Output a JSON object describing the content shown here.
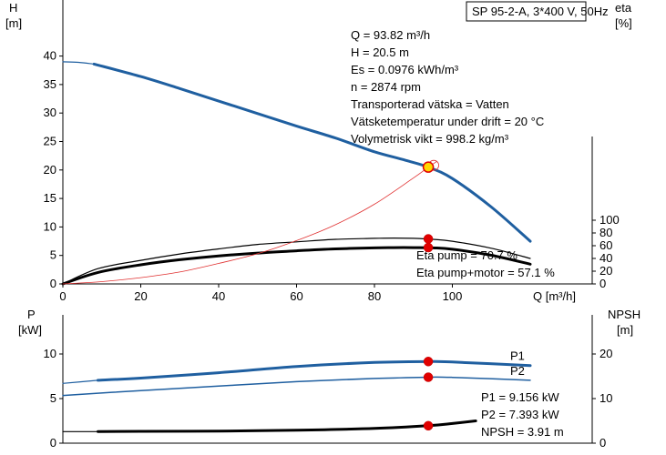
{
  "pump_title": "SP 95-2-A, 3*400 V, 50Hz",
  "operating_point_info": [
    "Q = 93.82 m³/h",
    "H = 20.5 m",
    "Es = 0.0976 kWh/m³",
    "n = 2874 rpm",
    "Transporterad vätska = Vatten",
    "Vätsketemperatur under drift = 20 °C",
    "Volymetrisk vikt = 998.2 kg/m³"
  ],
  "eta_info": [
    "Eta pump = 70.7 %",
    "Eta pump+motor = 57.1 %"
  ],
  "power_info": [
    "P1 = 9.156 kW",
    "P2 = 7.393 kW",
    "NPSH = 3.91 m"
  ],
  "colors": {
    "head": "#1f5fa0",
    "eta": "#000000",
    "system": "#e03030",
    "marker": "#e00000",
    "duty": "#ffd700"
  },
  "chart_data": [
    {
      "type": "line",
      "title": "",
      "xlabel": "Q [m³/h]",
      "ylabel": "H\n[m]",
      "y2label": "eta\n[%]",
      "xlim": [
        0,
        130
      ],
      "ylim": [
        0,
        45
      ],
      "y2lim": [
        0,
        100
      ],
      "xticks": [
        0,
        20,
        40,
        60,
        80,
        100
      ],
      "yticks": [
        0,
        5,
        10,
        15,
        20,
        25,
        30,
        35,
        40
      ],
      "y2ticks": [
        0,
        20,
        40,
        60,
        80,
        100
      ],
      "grid": false,
      "series": [
        {
          "name": "",
          "axis": "y",
          "color": "#1f5fa0",
          "kind": "head-dashed",
          "x": [
            0,
            4,
            8
          ],
          "y": [
            39,
            38.9,
            38.6
          ]
        },
        {
          "name": "",
          "axis": "y",
          "color": "#1f5fa0",
          "kind": "head",
          "x": [
            8,
            20,
            30,
            40,
            50,
            60,
            70,
            80,
            88,
            93.82,
            100,
            110,
            120
          ],
          "y": [
            38.6,
            36.4,
            34.3,
            32.1,
            29.9,
            27.7,
            25.6,
            23.2,
            21.7,
            20.5,
            18.5,
            13.5,
            7.5
          ]
        },
        {
          "name": "",
          "axis": "y2",
          "color": "#000000",
          "kind": "eta-pump",
          "x": [
            0,
            9,
            20,
            30,
            40,
            50,
            60,
            70,
            80,
            85,
            90,
            95,
            100,
            110,
            120
          ],
          "y": [
            0,
            24,
            37,
            47,
            55,
            62,
            66,
            70,
            71.5,
            72,
            71.5,
            70,
            67,
            56,
            40
          ]
        },
        {
          "name": "",
          "axis": "y2",
          "color": "#000000",
          "kind": "eta-total",
          "x": [
            0,
            9,
            20,
            30,
            40,
            50,
            60,
            70,
            80,
            85,
            90,
            95,
            100,
            110,
            120
          ],
          "y": [
            0,
            18,
            30,
            38,
            44,
            48.5,
            52,
            55,
            56.5,
            57,
            57,
            56.5,
            54.5,
            45,
            31
          ]
        },
        {
          "name": "",
          "axis": "y",
          "color": "#e03030",
          "kind": "system",
          "x": [
            0,
            10,
            20,
            30,
            40,
            50,
            60,
            70,
            80,
            90,
            93.82,
            96
          ],
          "y": [
            0,
            0.4,
            1.1,
            2.1,
            3.6,
            5.3,
            7.6,
            10.4,
            14.0,
            18.6,
            20.5,
            21.5
          ]
        }
      ],
      "markers": [
        {
          "axis": "y",
          "x": 93.82,
          "y": 20.5,
          "kind": "duty"
        },
        {
          "axis": "y2",
          "x": 93.82,
          "y": 70.7,
          "kind": "point"
        },
        {
          "axis": "y2",
          "x": 93.82,
          "y": 57.1,
          "kind": "point"
        }
      ]
    },
    {
      "type": "line",
      "title": "",
      "xlabel": "",
      "ylabel": "P\n[kW]",
      "y2label": "NPSH\n[m]",
      "xlim": [
        0,
        130
      ],
      "ylim": [
        0,
        12.5
      ],
      "y2lim": [
        0,
        25
      ],
      "yticks": [
        0,
        5,
        10
      ],
      "y2ticks": [
        0,
        10,
        20
      ],
      "grid": false,
      "series": [
        {
          "name": "P1",
          "axis": "y",
          "color": "#1f5fa0",
          "kind": "p1",
          "x": [
            9,
            20,
            40,
            60,
            80,
            93.82,
            100,
            120
          ],
          "y": [
            7.05,
            7.3,
            7.9,
            8.6,
            9.05,
            9.156,
            9.1,
            8.7
          ]
        },
        {
          "name": "",
          "axis": "y",
          "color": "#1f5fa0",
          "kind": "p1-dashed",
          "x": [
            0,
            9
          ],
          "y": [
            6.7,
            7.05
          ]
        },
        {
          "name": "P2",
          "axis": "y",
          "color": "#1f5fa0",
          "kind": "p2",
          "x": [
            0,
            20,
            40,
            60,
            80,
            93.82,
            100,
            120
          ],
          "y": [
            5.35,
            5.9,
            6.4,
            6.9,
            7.25,
            7.393,
            7.38,
            7.05
          ]
        },
        {
          "name": "",
          "axis": "y2",
          "color": "#000000",
          "kind": "npsh",
          "x": [
            9,
            20,
            40,
            60,
            80,
            93.82,
            100,
            106
          ],
          "y": [
            2.6,
            2.65,
            2.7,
            2.9,
            3.3,
            3.91,
            4.4,
            5.0
          ]
        },
        {
          "name": "",
          "axis": "y2",
          "color": "#000000",
          "kind": "npsh-dashed",
          "x": [
            0,
            9
          ],
          "y": [
            2.6,
            2.6
          ]
        }
      ],
      "markers": [
        {
          "axis": "y",
          "x": 93.82,
          "y": 9.156,
          "kind": "point"
        },
        {
          "axis": "y",
          "x": 93.82,
          "y": 7.393,
          "kind": "point"
        },
        {
          "axis": "y2",
          "x": 93.82,
          "y": 3.91,
          "kind": "point"
        }
      ]
    }
  ]
}
